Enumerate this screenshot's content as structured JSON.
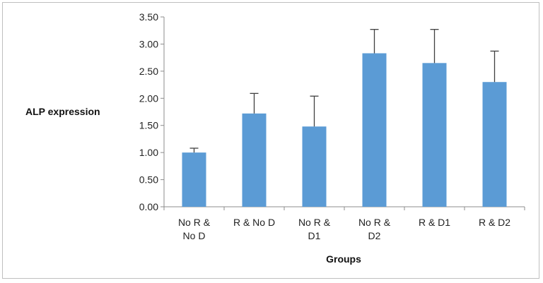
{
  "chart_data": {
    "type": "bar",
    "xlabel": "Groups",
    "ylabel": "ALP expression",
    "categories": [
      [
        "No R &",
        "No D"
      ],
      [
        "R & No D"
      ],
      [
        "No R &",
        "D1"
      ],
      [
        "No R &",
        "D2"
      ],
      [
        "R & D1"
      ],
      [
        "R & D2"
      ]
    ],
    "values": [
      1.0,
      1.72,
      1.48,
      2.83,
      2.65,
      2.3
    ],
    "errors": [
      0.08,
      0.37,
      0.56,
      0.44,
      0.62,
      0.57
    ],
    "ylim": [
      0,
      3.5
    ],
    "yticks": [
      "0.00",
      "0.50",
      "1.00",
      "1.50",
      "2.00",
      "2.50",
      "3.00",
      "3.50"
    ],
    "grid": false,
    "legend": "none",
    "colors": {
      "bar": "#5b9bd5",
      "axis": "#8c8c8c",
      "error": "#404040"
    }
  }
}
